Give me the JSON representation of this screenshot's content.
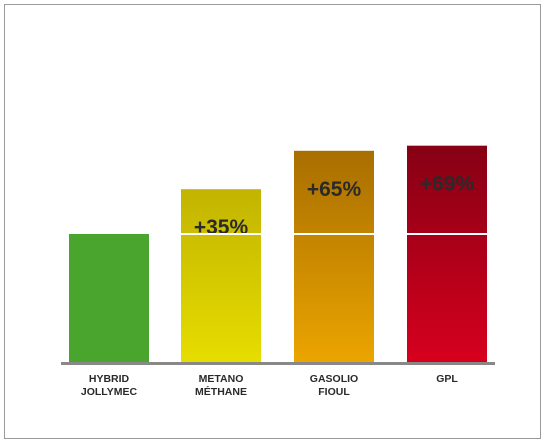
{
  "chart_data": {
    "type": "bar",
    "categories": [
      [
        "HYBRID",
        "JOLLYMEC"
      ],
      [
        "METANO",
        "MÉTHANE"
      ],
      [
        "GASOLIO",
        "FIOUL"
      ],
      [
        "GPL"
      ]
    ],
    "values": [
      100,
      135,
      165,
      169
    ],
    "labels": [
      "",
      "+35%",
      "+65%",
      "+69%"
    ],
    "baseline_reference": 100,
    "ylim": [
      0,
      175
    ],
    "grid": false,
    "legend": "none",
    "colors": [
      {
        "top": "#4aa52e",
        "bottom": "#4aa52e"
      },
      {
        "top": "#c2b400",
        "bottom": "#e6dd00"
      },
      {
        "top": "#a86e00",
        "bottom": "#eba500"
      },
      {
        "top": "#860014",
        "bottom": "#d6001e"
      }
    ],
    "reference_line_color": "#ffffff",
    "axis_color": "#888888"
  }
}
